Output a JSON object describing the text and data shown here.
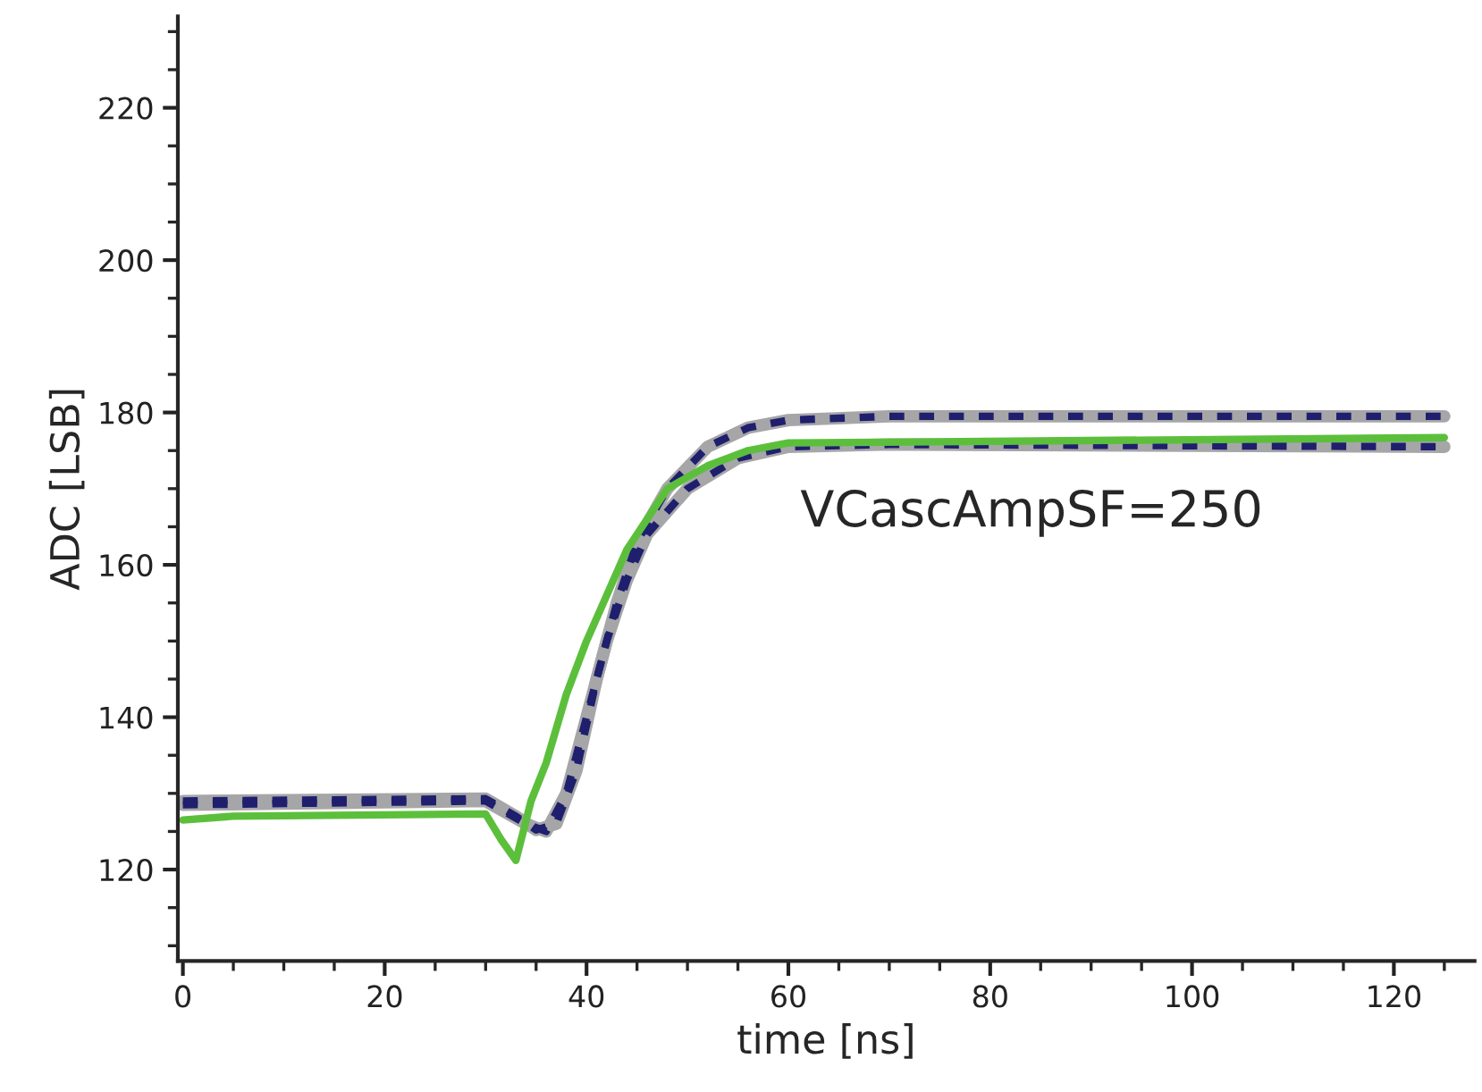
{
  "chart_data": {
    "type": "line",
    "xlabel": "time [ns]",
    "ylabel": "ADC [LSB]",
    "xlim": [
      -0.5,
      128
    ],
    "ylim": [
      108,
      232
    ],
    "xticks": [
      0,
      20,
      40,
      60,
      80,
      100,
      120
    ],
    "yticks": [
      120,
      140,
      160,
      180,
      200,
      220
    ],
    "grid": false,
    "legend": false,
    "marker": "none",
    "annotations": [
      "VCascAmpSF=250"
    ],
    "series": [
      {
        "color": "#a6a6a8",
        "line_style": "solid",
        "x": [
          0,
          30,
          33,
          35,
          37,
          39,
          41,
          43,
          45,
          48,
          52,
          56,
          60,
          70,
          125
        ],
        "values": [
          129,
          129.3,
          127,
          125.2,
          126,
          133,
          145,
          155,
          163,
          170,
          175.5,
          178,
          179,
          179.5,
          179.5
        ]
      },
      {
        "color": "#a6a6a8",
        "line_style": "solid",
        "x": [
          0,
          30,
          34,
          36,
          38,
          40,
          42,
          44,
          46,
          50,
          55,
          60,
          70,
          125
        ],
        "values": [
          128.5,
          129,
          126,
          125,
          130,
          140,
          150,
          158,
          164,
          170,
          174,
          175.5,
          175.8,
          175.5
        ]
      },
      {
        "color": "#1f1f6e",
        "line_style": "dashed",
        "x": [
          0,
          30,
          33,
          35,
          37,
          39,
          41,
          43,
          45,
          48,
          52,
          56,
          60,
          70,
          125
        ],
        "values": [
          129,
          129.3,
          127,
          125.2,
          126,
          133,
          145,
          155,
          163,
          170,
          175.5,
          178,
          179,
          179.5,
          179.5
        ]
      },
      {
        "color": "#1f1f6e",
        "line_style": "dashed",
        "x": [
          0,
          30,
          34,
          36,
          38,
          40,
          42,
          44,
          46,
          50,
          55,
          60,
          70,
          125
        ],
        "values": [
          128.5,
          129,
          126,
          125,
          130,
          140,
          150,
          158,
          164,
          170,
          174,
          175.5,
          175.8,
          175.5
        ]
      },
      {
        "color": "#5cbf3c",
        "line_style": "solid",
        "x": [
          0,
          5,
          30,
          31.5,
          33,
          34.5,
          36,
          38,
          40,
          42,
          44,
          46,
          48,
          52,
          56,
          60,
          125
        ],
        "values": [
          126.5,
          127,
          127.3,
          124,
          121.2,
          129,
          134,
          143,
          150,
          156,
          162,
          166,
          170,
          173,
          175,
          176,
          176.7
        ]
      }
    ]
  }
}
